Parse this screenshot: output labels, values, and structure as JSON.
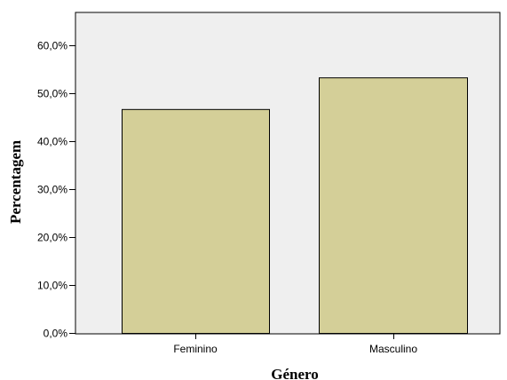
{
  "chart_data": {
    "type": "bar",
    "categories": [
      "Feminino",
      "Masculino"
    ],
    "values": [
      46.7,
      53.3
    ],
    "xlabel": "Género",
    "ylabel": "Percentagem",
    "ylim": [
      0,
      67
    ],
    "yticks": [
      0,
      10,
      20,
      30,
      40,
      50,
      60
    ],
    "ytick_labels": [
      "0,0%",
      "10,0%",
      "20,0%",
      "30,0%",
      "40,0%",
      "50,0%",
      "60,0%"
    ],
    "grid": false,
    "legend": "none",
    "colors": {
      "plot_background": "#efefef",
      "bar_fill": "#d4cf98",
      "bar_stroke": "#000000",
      "axis": "#000000"
    }
  }
}
